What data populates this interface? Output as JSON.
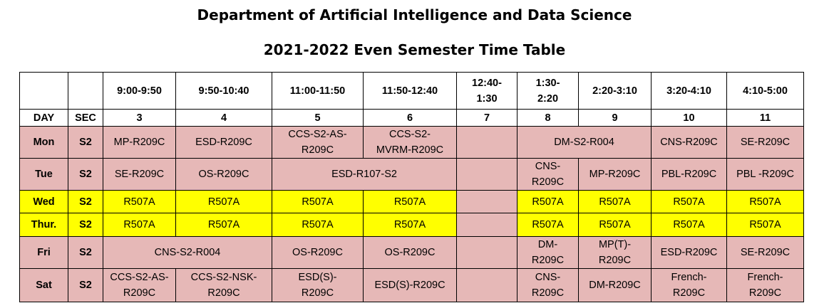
{
  "title": "Department of Artificial Intelligence and Data Science",
  "subtitle": "2021-2022 Even Semester Time Table",
  "colors": {
    "regular_row": "#e6b8b7",
    "lab_row": "#ffff00"
  },
  "header": {
    "times": [
      "9:00-9:50",
      "9:50-10:40",
      "11:00-11:50",
      "11:50-12:40",
      "12:40-\n1:30",
      "1:30-\n2:20",
      "2:20-3:10",
      "3:20-4:10",
      "4:10-5:00"
    ],
    "day_label": "DAY",
    "sec_label": "SEC",
    "periods": [
      "3",
      "4",
      "5",
      "6",
      "7",
      "8",
      "9",
      "10",
      "11"
    ]
  },
  "rows": [
    {
      "day": "Mon",
      "sec": "S2",
      "cells": [
        "MP-R209C",
        "ESD-R209C",
        "CCS-S2-AS-\nR209C",
        "CCS-S2-\nMVRM-R209C",
        "",
        "DM-S2-R004",
        "CNS-R209C",
        "SE-R209C"
      ]
    },
    {
      "day": "Tue",
      "sec": "S2",
      "cells": [
        "SE-R209C",
        "OS-R209C",
        "ESD-R107-S2",
        "",
        "CNS-\nR209C",
        "MP-R209C",
        "PBL-R209C",
        "PBL -R209C"
      ]
    },
    {
      "day": "Wed",
      "sec": "S2",
      "cells": [
        "R507A",
        "R507A",
        "R507A",
        "R507A",
        "",
        "R507A",
        "R507A",
        "R507A",
        "R507A"
      ]
    },
    {
      "day": "Thur.",
      "sec": "S2",
      "cells": [
        "R507A",
        "R507A",
        "R507A",
        "R507A",
        "",
        "R507A",
        "R507A",
        "R507A",
        "R507A"
      ]
    },
    {
      "day": "Fri",
      "sec": "S2",
      "cells": [
        "CNS-S2-R004",
        "OS-R209C",
        "OS-R209C",
        "",
        "DM-\nR209C",
        "MP(T)-\nR209C",
        "ESD-R209C",
        "SE-R209C"
      ]
    },
    {
      "day": "Sat",
      "sec": "S2",
      "cells": [
        "CCS-S2-AS-\nR209C",
        "CCS-S2-NSK-\nR209C",
        "ESD(S)-\nR209C",
        "ESD(S)-R209C",
        "",
        "CNS-\nR209C",
        "DM-R209C",
        "French-\nR209C",
        "French-\nR209C"
      ]
    }
  ]
}
